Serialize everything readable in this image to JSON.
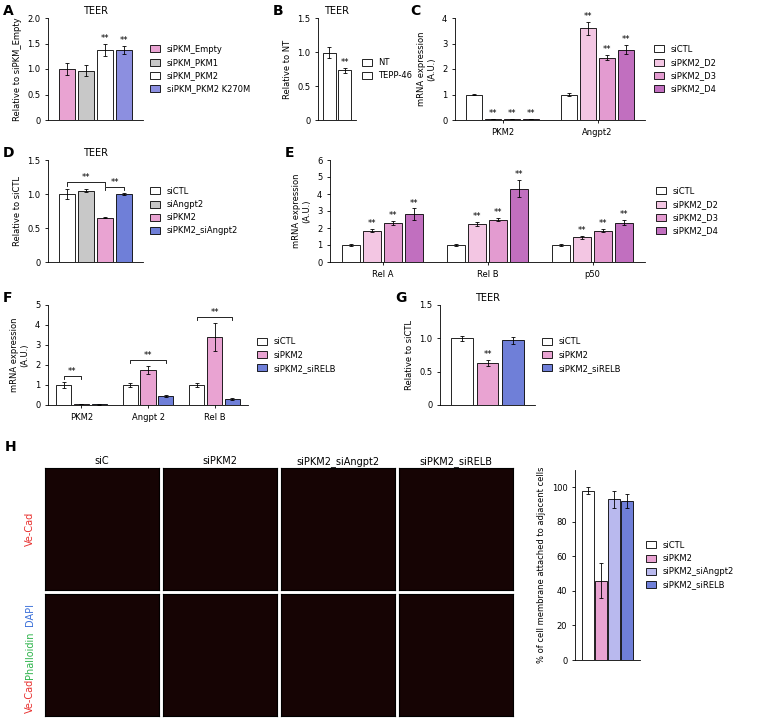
{
  "chart_data": [
    {
      "panel": "A",
      "type": "bar",
      "title": "TEER",
      "y_label": "Relative to siPKM_Empty",
      "categories": [
        null
      ],
      "tick_labels": "y",
      "legend": "right",
      "ylim": [
        0,
        2
      ],
      "yticks": [
        0,
        0.5,
        {
          "value": 1,
          "label": "1.0"
        },
        1.5,
        {
          "value": 2,
          "label": "2.0"
        }
      ],
      "series": [
        {
          "name": "siPKM_Empty",
          "color": "#e9a3d2",
          "values": [
            1.0
          ],
          "errors": [
            0.12
          ]
        },
        {
          "name": "siPKM_PKM1",
          "color": "#c8c8c8",
          "values": [
            0.97
          ],
          "errors": [
            0.1
          ]
        },
        {
          "name": "siPKM_PKM2",
          "color": "#ffffff",
          "values": [
            1.38
          ],
          "errors": [
            0.12
          ],
          "significance": [
            "**"
          ]
        },
        {
          "name": "siPKM_PKM2 K270M",
          "color": "#8c8fe0",
          "values": [
            1.37
          ],
          "errors": [
            0.08
          ],
          "significance": [
            "**"
          ]
        }
      ]
    },
    {
      "panel": "B",
      "type": "bar",
      "title": "TEER",
      "y_label": "Relative to NT",
      "categories": [
        null
      ],
      "tick_labels": "y",
      "legend": "right",
      "ylim": [
        0,
        1.5
      ],
      "yticks": [
        0,
        0.5,
        {
          "value": 1,
          "label": "1.0"
        },
        1.5
      ],
      "series": [
        {
          "name": "NT",
          "color": "#ffffff",
          "values": [
            0.99
          ],
          "errors": [
            0.08
          ]
        },
        {
          "name": "TEPP-46",
          "color": "#ffffff",
          "values": [
            0.73
          ],
          "errors": [
            0.04
          ],
          "significance": [
            "**"
          ]
        }
      ]
    },
    {
      "panel": "C",
      "type": "bar",
      "y_label": "mRNA expression\n(A.U.)",
      "categories": [
        "PKM2",
        "Angpt2"
      ],
      "legend": "right",
      "ylim": [
        0,
        4
      ],
      "yticks": [
        0,
        1,
        2,
        3,
        4
      ],
      "series": [
        {
          "name": "siCTL",
          "color": "#ffffff",
          "values": [
            1.0,
            1.0
          ],
          "errors": [
            0.03,
            0.05
          ]
        },
        {
          "name": "siPKM2_D2",
          "color": "#f3c6e3",
          "values": [
            0.03,
            3.6
          ],
          "errors": [
            0.01,
            0.25
          ],
          "significance": [
            "**",
            "**"
          ]
        },
        {
          "name": "siPKM2_D3",
          "color": "#e39bd0",
          "values": [
            0.03,
            2.45
          ],
          "errors": [
            0.01,
            0.1
          ],
          "significance": [
            "**",
            "**"
          ]
        },
        {
          "name": "siPKM2_D4",
          "color": "#c16fbf",
          "values": [
            0.03,
            2.75
          ],
          "errors": [
            0.01,
            0.18
          ],
          "significance": [
            "**",
            "**"
          ]
        }
      ]
    },
    {
      "panel": "D",
      "type": "bar",
      "title": "TEER",
      "y_label": "Relative to siCTL",
      "categories": [
        null
      ],
      "tick_labels": "y",
      "legend": "right",
      "ylim": [
        0,
        1.5
      ],
      "yticks": [
        0,
        0.5,
        {
          "value": 1,
          "label": "1.0"
        },
        1.5
      ],
      "series": [
        {
          "name": "siCTL",
          "color": "#ffffff",
          "values": [
            1.0
          ],
          "errors": [
            0.08
          ]
        },
        {
          "name": "siAngpt2",
          "color": "#c8c8c8",
          "values": [
            1.05
          ],
          "errors": [
            0.02
          ]
        },
        {
          "name": "siPKM2",
          "color": "#e9a3d2",
          "values": [
            0.65
          ],
          "errors": [
            0.01
          ]
        },
        {
          "name": "siPKM2_siAngpt2",
          "color": "#6f7fd8",
          "values": [
            1.0
          ],
          "errors": [
            0.02
          ]
        }
      ],
      "comparisons": [
        {
          "from": "siCTL",
          "to": "siPKM2",
          "label": "**"
        },
        {
          "from": "siPKM2",
          "to": "siPKM2_siAngpt2",
          "label": "**"
        }
      ]
    },
    {
      "panel": "E",
      "type": "bar",
      "y_label": "mRNA expression\n(A.U.)",
      "categories": [
        "Rel A",
        "Rel B",
        "p50"
      ],
      "legend": "right",
      "ylim": [
        0,
        6
      ],
      "yticks": [
        0,
        1,
        2,
        3,
        4,
        5,
        6
      ],
      "series": [
        {
          "name": "siCTL",
          "color": "#ffffff",
          "values": [
            1.0,
            1.0,
            1.0
          ],
          "errors": [
            0.05,
            0.05,
            0.05
          ]
        },
        {
          "name": "siPKM2_D2",
          "color": "#f3c6e3",
          "values": [
            1.85,
            2.25,
            1.45
          ],
          "errors": [
            0.08,
            0.12,
            0.1
          ],
          "significance": [
            "**",
            "**",
            "**"
          ]
        },
        {
          "name": "siPKM2_D3",
          "color": "#e39bd0",
          "values": [
            2.3,
            2.5,
            1.85
          ],
          "errors": [
            0.1,
            0.1,
            0.08
          ],
          "significance": [
            "**",
            "**",
            "**"
          ]
        },
        {
          "name": "siPKM2_D4",
          "color": "#c16fbf",
          "values": [
            2.8,
            4.3,
            2.3
          ],
          "errors": [
            0.35,
            0.5,
            0.15
          ],
          "significance": [
            "**",
            "**",
            "**"
          ]
        }
      ]
    },
    {
      "panel": "F",
      "type": "bar",
      "y_label": "mRNA expression\n(A.U.)",
      "categories": [
        "PKM2",
        "Angpt 2",
        "Rel B"
      ],
      "legend": "right",
      "ylim": [
        0,
        5
      ],
      "yticks": [
        0,
        1,
        2,
        3,
        4,
        5
      ],
      "series": [
        {
          "name": "siCTL",
          "color": "#ffffff",
          "values": [
            1.0,
            1.0,
            1.0
          ],
          "errors": [
            0.15,
            0.1,
            0.1
          ]
        },
        {
          "name": "siPKM2",
          "color": "#e9a3d2",
          "values": [
            0.05,
            1.75,
            3.4
          ],
          "errors": [
            0.01,
            0.2,
            0.7
          ]
        },
        {
          "name": "siPKM2_siRELB",
          "color": "#6f7fd8",
          "values": [
            0.03,
            0.45,
            0.3
          ],
          "errors": [
            0.01,
            0.03,
            0.03
          ]
        }
      ],
      "comparisons": [
        {
          "category": "PKM2",
          "from": "siCTL",
          "to": "siPKM2",
          "label": "**"
        },
        {
          "category": "Angpt 2",
          "from": "siCTL",
          "to": "siPKM2_siRELB",
          "label": "**"
        },
        {
          "category": "Rel B",
          "from": "siCTL",
          "to": "siPKM2_siRELB",
          "label": "**"
        }
      ]
    },
    {
      "panel": "G",
      "type": "bar",
      "title": "TEER",
      "y_label": "Relative to siCTL",
      "categories": [
        null
      ],
      "tick_labels": "y",
      "legend": "right",
      "ylim": [
        0,
        1.5
      ],
      "yticks": [
        0,
        0.5,
        {
          "value": 1,
          "label": "1.0"
        },
        1.5
      ],
      "series": [
        {
          "name": "siCTL",
          "color": "#ffffff",
          "values": [
            1.0
          ],
          "errors": [
            0.04
          ]
        },
        {
          "name": "siPKM2",
          "color": "#e9a3d2",
          "values": [
            0.63
          ],
          "errors": [
            0.05
          ],
          "significance": [
            "**"
          ]
        },
        {
          "name": "siPKM2_siRELB",
          "color": "#6f7fd8",
          "values": [
            0.97
          ],
          "errors": [
            0.05
          ]
        }
      ]
    },
    {
      "type": "bar",
      "y_label": "% of cell membrane attached to adjacent cells",
      "categories": [
        null
      ],
      "tick_labels": "y",
      "legend": "right",
      "ylim": [
        0,
        110
      ],
      "yticks": [
        0,
        20,
        40,
        60,
        80,
        100
      ],
      "series": [
        {
          "name": "siCTL",
          "color": "#ffffff",
          "values": [
            98
          ],
          "errors": [
            2
          ]
        },
        {
          "name": "siPKM2",
          "color": "#e9a3d2",
          "values": [
            46
          ],
          "errors": [
            10
          ]
        },
        {
          "name": "siPKM2_siAngpt2",
          "color": "#b9b9ee",
          "values": [
            93
          ],
          "errors": [
            5
          ]
        },
        {
          "name": "siPKM2_siRELB",
          "color": "#6f7fd8",
          "values": [
            92
          ],
          "errors": [
            4
          ]
        }
      ]
    }
  ],
  "image_panel": {
    "panel": "H",
    "columns": [
      "siC",
      "siPKM2",
      "siPKM2_siAngpt2",
      "siPKM2_siRELB"
    ],
    "rows": [
      [
        {
          "text": "Ve-Cad",
          "color": "#e8312f"
        }
      ],
      [
        {
          "text": "Ve-Cad",
          "color": "#e8312f"
        },
        {
          "text": "Phalloidin",
          "color": "#2db34a"
        },
        {
          "text": "DAPI",
          "color": "#3a6fd8"
        }
      ]
    ]
  }
}
